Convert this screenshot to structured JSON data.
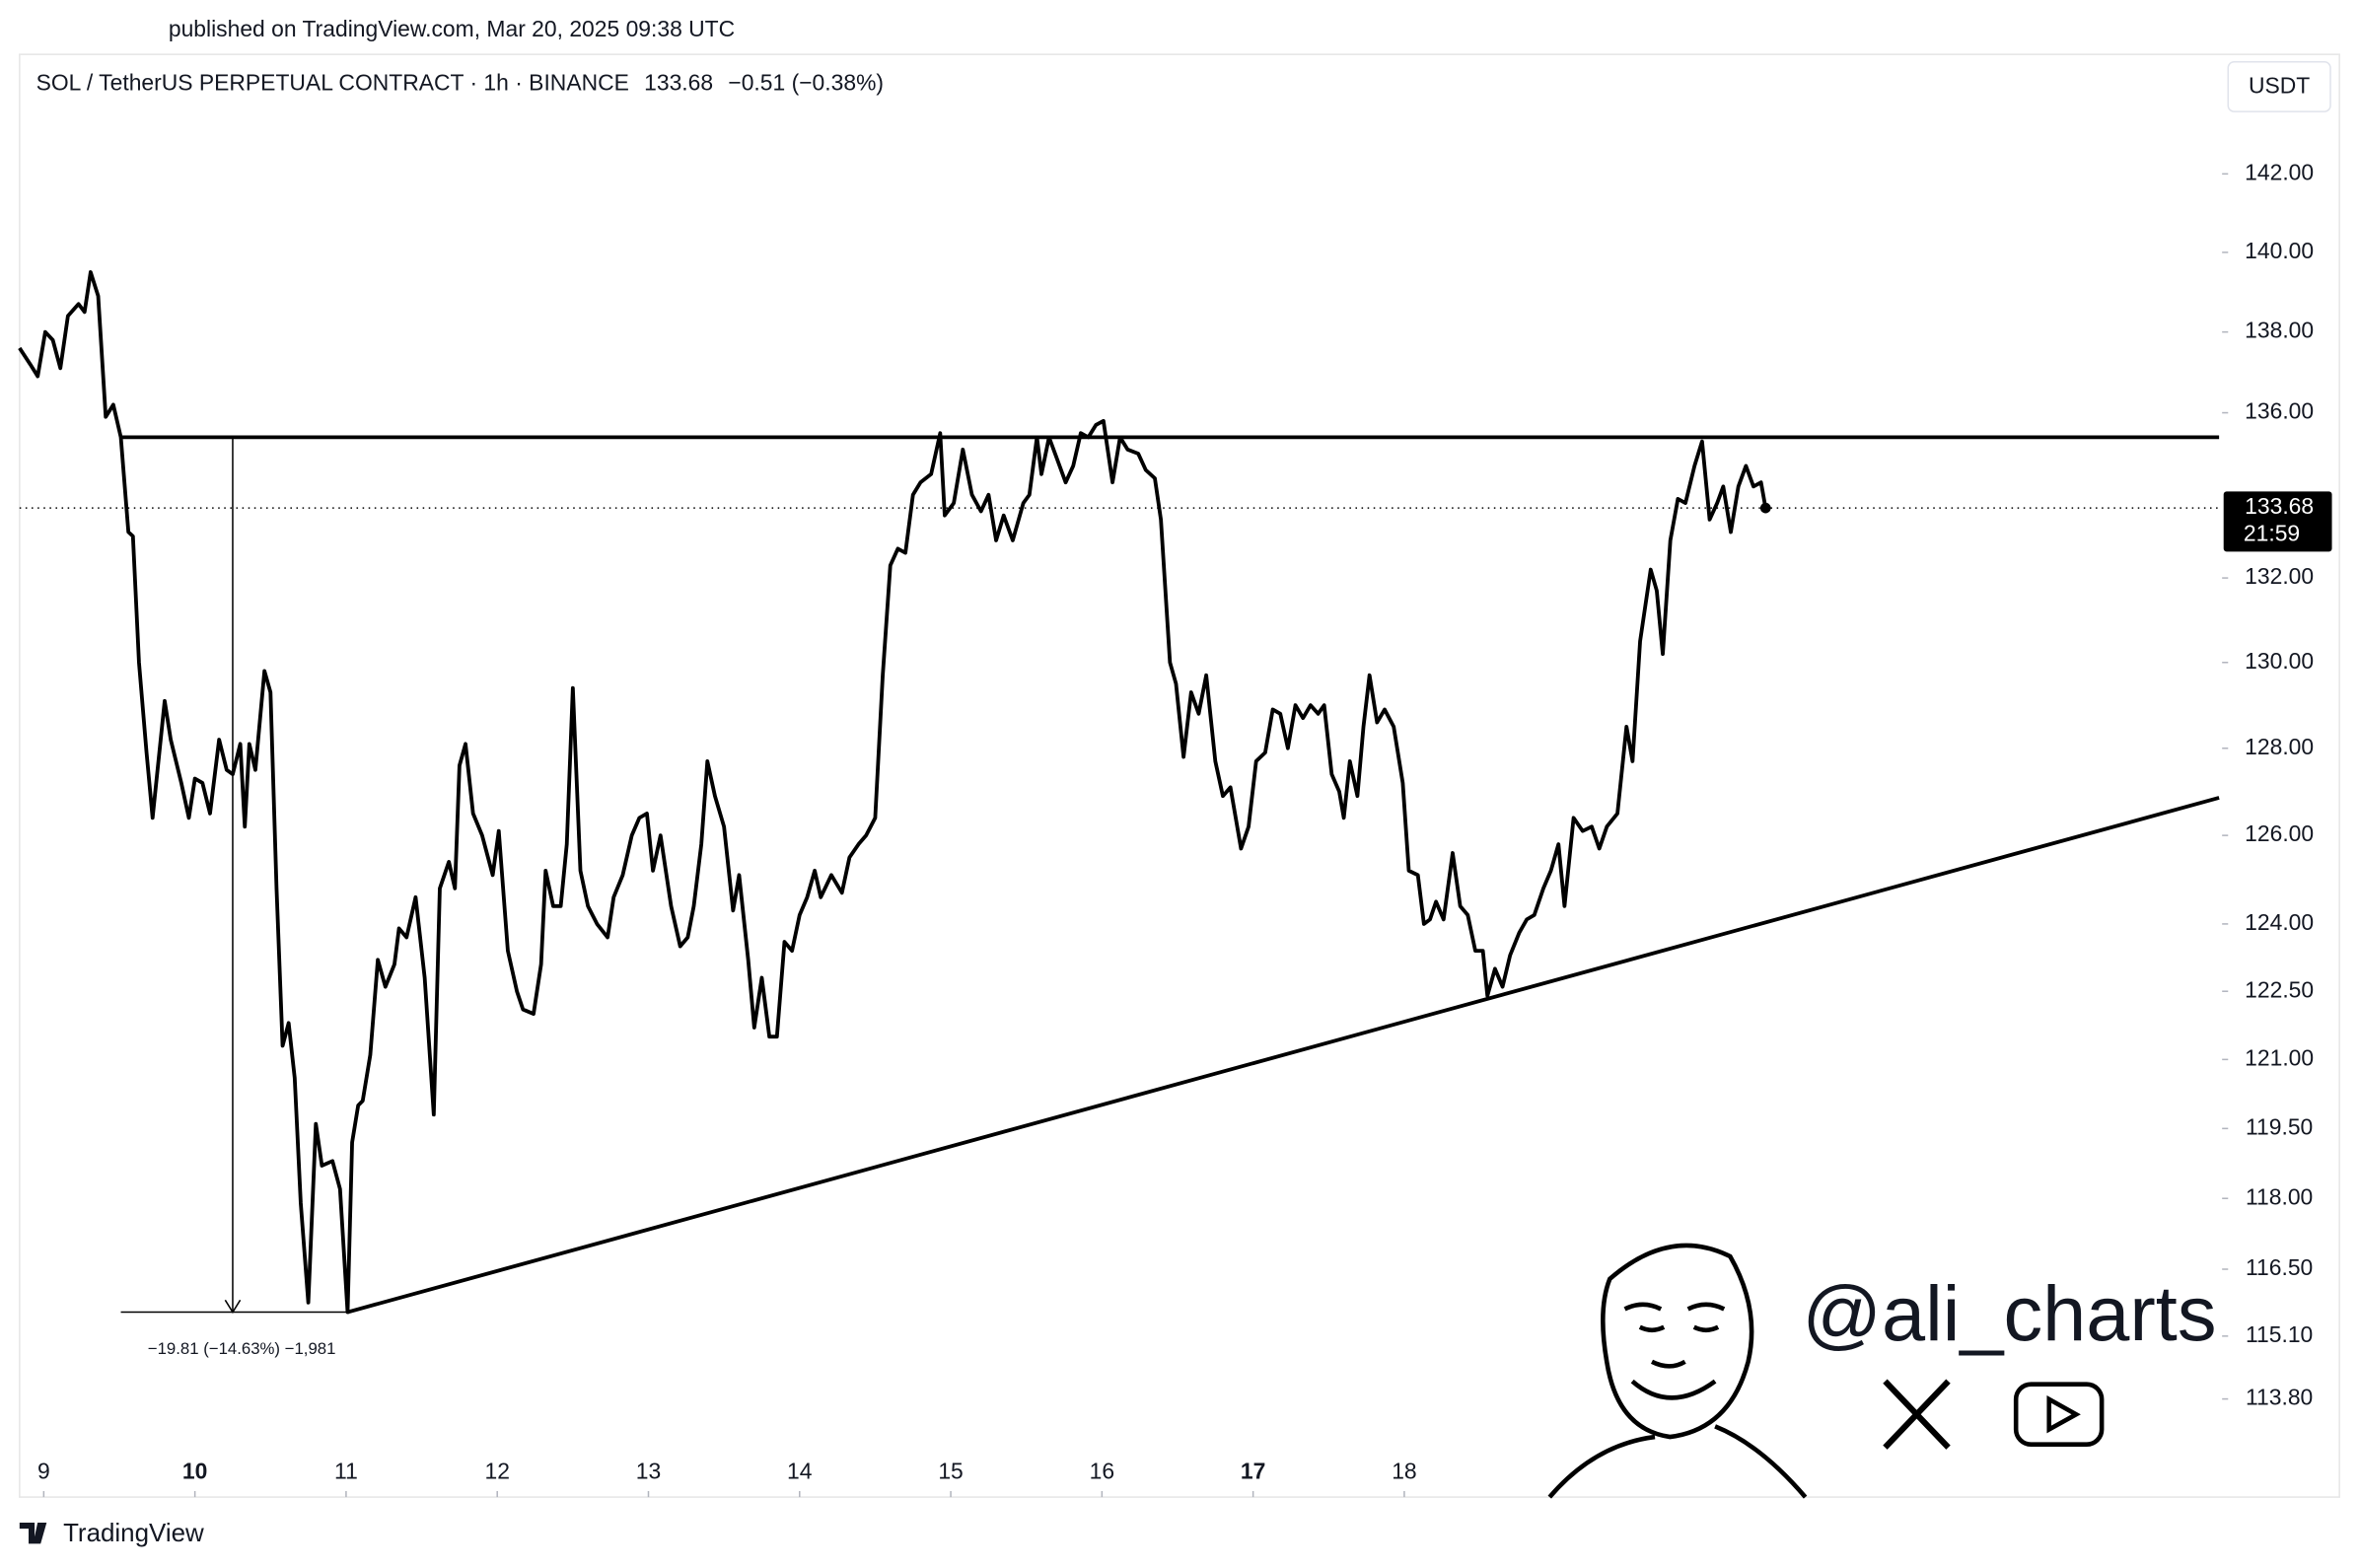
{
  "header": {
    "published": "published on TradingView.com, Mar 20, 2025 09:38 UTC",
    "footer_brand": "TradingView",
    "watermark": "@ali_charts"
  },
  "chart_data": {
    "type": "line",
    "title": "SOL / TetherUS PERPETUAL CONTRACT · 1h · BINANCE",
    "header_price": 133.68,
    "price_change": "−0.51 (−0.38%)",
    "currency": "USDT",
    "last_price": 133.68,
    "countdown": "21:59",
    "color": "#000000",
    "log_scale": true,
    "x": [
      8.84,
      8.91,
      8.96,
      9.01,
      9.06,
      9.11,
      9.16,
      9.23,
      9.27,
      9.31,
      9.36,
      9.41,
      9.46,
      9.51,
      9.56,
      9.59,
      9.63,
      9.68,
      9.72,
      9.8,
      9.84,
      9.91,
      9.96,
      10.0,
      10.05,
      10.1,
      10.16,
      10.21,
      10.25,
      10.3,
      10.33,
      10.36,
      10.4,
      10.46,
      10.5,
      10.54,
      10.58,
      10.62,
      10.66,
      10.7,
      10.75,
      10.8,
      10.84,
      10.91,
      10.96,
      11.01,
      11.04,
      11.08,
      11.11,
      11.16,
      11.21,
      11.26,
      11.32,
      11.35,
      11.4,
      11.46,
      11.52,
      11.58,
      11.62,
      11.68,
      11.72,
      11.75,
      11.79,
      11.84,
      11.9,
      11.97,
      12.01,
      12.07,
      12.13,
      12.17,
      12.24,
      12.29,
      12.32,
      12.37,
      12.42,
      12.46,
      12.5,
      12.55,
      12.6,
      12.66,
      12.73,
      12.77,
      12.83,
      12.89,
      12.94,
      12.99,
      13.03,
      13.08,
      13.15,
      13.21,
      13.26,
      13.3,
      13.35,
      13.39,
      13.44,
      13.5,
      13.56,
      13.6,
      13.66,
      13.7,
      13.75,
      13.8,
      13.85,
      13.9,
      13.95,
      14.0,
      14.05,
      14.1,
      14.14,
      14.21,
      14.28,
      14.33,
      14.39,
      14.44,
      14.5,
      14.55,
      14.6,
      14.65,
      14.7,
      14.75,
      14.8,
      14.87,
      14.93,
      14.96,
      15.02,
      15.08,
      15.14,
      15.2,
      15.25,
      15.3,
      15.35,
      15.41,
      15.48,
      15.52,
      15.57,
      15.6,
      15.65,
      15.7,
      15.76,
      15.81,
      15.86,
      15.91,
      15.96,
      16.01,
      16.07,
      16.12,
      16.17,
      16.24,
      16.29,
      16.35,
      16.39,
      16.45,
      16.49,
      16.54,
      16.59,
      16.64,
      16.69,
      16.75,
      16.8,
      16.85,
      16.92,
      16.97,
      17.02,
      17.08,
      17.13,
      17.18,
      17.23,
      17.28,
      17.33,
      17.38,
      17.43,
      17.47,
      17.52,
      17.57,
      17.6,
      17.64,
      17.69,
      17.73,
      17.77,
      17.82,
      17.87,
      17.93,
      17.99,
      18.03,
      18.09,
      18.13,
      18.17,
      18.21,
      18.26,
      18.32,
      18.37,
      18.42,
      18.47,
      18.52,
      18.55,
      18.6,
      18.65,
      18.7,
      18.76,
      18.81,
      18.86,
      18.92,
      18.97,
      19.02,
      19.06,
      19.12,
      19.18,
      19.24,
      19.29,
      19.34,
      19.41,
      19.47,
      19.51,
      19.56,
      19.63,
      19.67,
      19.71,
      19.76,
      19.81,
      19.86,
      19.92,
      19.97,
      20.02,
      20.07,
      20.11,
      20.16,
      20.21,
      20.26,
      20.31,
      20.36,
      20.39
    ],
    "values": [
      137.6,
      137.2,
      136.9,
      138.0,
      137.8,
      137.1,
      138.4,
      138.7,
      138.5,
      139.5,
      138.9,
      135.9,
      136.2,
      135.4,
      133.1,
      133.0,
      130.0,
      127.9,
      126.4,
      129.1,
      128.2,
      127.2,
      126.4,
      127.3,
      127.2,
      126.5,
      128.2,
      127.5,
      127.4,
      128.1,
      126.2,
      128.1,
      127.5,
      129.8,
      129.3,
      124.8,
      121.3,
      121.8,
      120.6,
      117.9,
      115.8,
      119.6,
      118.7,
      118.8,
      118.2,
      115.6,
      119.2,
      120.0,
      120.1,
      121.1,
      123.2,
      122.6,
      123.1,
      123.9,
      123.7,
      124.6,
      122.8,
      119.8,
      124.8,
      125.4,
      124.8,
      127.6,
      128.1,
      126.5,
      126.0,
      125.1,
      126.1,
      123.4,
      122.5,
      122.1,
      122.0,
      123.1,
      125.2,
      124.4,
      124.4,
      125.8,
      129.4,
      125.2,
      124.4,
      124.0,
      123.7,
      124.6,
      125.1,
      126.0,
      126.4,
      126.5,
      125.2,
      126.0,
      124.4,
      123.5,
      123.7,
      124.4,
      125.8,
      127.7,
      126.9,
      126.2,
      124.3,
      125.1,
      123.2,
      121.7,
      122.8,
      121.5,
      121.5,
      123.6,
      123.4,
      124.2,
      124.6,
      125.2,
      124.6,
      125.1,
      124.7,
      125.5,
      125.8,
      126.0,
      126.4,
      129.7,
      132.3,
      132.7,
      132.6,
      134.0,
      134.3,
      134.5,
      135.5,
      133.5,
      133.8,
      135.1,
      134.0,
      133.6,
      134.0,
      132.9,
      133.5,
      132.9,
      133.8,
      134.0,
      135.4,
      134.5,
      135.4,
      134.9,
      134.3,
      134.7,
      135.5,
      135.4,
      135.7,
      135.8,
      134.3,
      135.4,
      135.1,
      135.0,
      134.6,
      134.4,
      133.4,
      130.0,
      129.5,
      127.8,
      129.3,
      128.8,
      129.7,
      127.7,
      126.9,
      127.1,
      125.7,
      126.2,
      127.7,
      127.9,
      128.9,
      128.8,
      128.0,
      129.0,
      128.7,
      129.0,
      128.8,
      129.0,
      127.4,
      127.0,
      126.4,
      127.7,
      126.9,
      128.5,
      129.7,
      128.6,
      128.9,
      128.5,
      127.2,
      125.2,
      125.1,
      124.0,
      124.1,
      124.5,
      124.1,
      125.6,
      124.4,
      124.2,
      123.4,
      123.4,
      122.4,
      123.0,
      122.6,
      123.3,
      123.8,
      124.1,
      124.2,
      124.8,
      125.2,
      125.8,
      124.4,
      126.4,
      126.1,
      126.2,
      125.7,
      126.2,
      126.5,
      128.5,
      127.7,
      130.5,
      132.2,
      131.7,
      130.2,
      132.9,
      133.9,
      133.8,
      134.7,
      135.3,
      133.4,
      133.8,
      134.2,
      133.1,
      134.2,
      134.7,
      134.2,
      134.3,
      133.68
    ],
    "xlim": [
      8.84,
      23.39
    ],
    "xticks": [
      9,
      10,
      11,
      12,
      13,
      14,
      15,
      16,
      17,
      18
    ],
    "ylim": [
      111.8,
      145.1
    ],
    "yticks": [
      {
        "value": 142,
        "label": "142.00"
      },
      {
        "value": 140,
        "label": "140.00"
      },
      {
        "value": 138,
        "label": "138.00"
      },
      {
        "value": 136,
        "label": "136.00"
      },
      {
        "value": 132,
        "label": "132.00"
      },
      {
        "value": 130,
        "label": "130.00"
      },
      {
        "value": 128,
        "label": "128.00"
      },
      {
        "value": 126,
        "label": "126.00"
      },
      {
        "value": 124,
        "label": "124.00"
      },
      {
        "value": 122.5,
        "label": "122.50"
      },
      {
        "value": 121,
        "label": "121.00"
      },
      {
        "value": 119.5,
        "label": "119.50"
      },
      {
        "value": 118,
        "label": "118.00"
      },
      {
        "value": 116.5,
        "label": "116.50"
      },
      {
        "value": 115.1,
        "label": "115.10"
      },
      {
        "value": 113.8,
        "label": "113.80"
      }
    ],
    "resistance": {
      "x": [
        9.51,
        23.39
      ],
      "y": [
        135.4,
        135.4
      ]
    },
    "support": {
      "x": [
        11.01,
        23.39
      ],
      "y": [
        115.6,
        126.86
      ]
    },
    "measure": {
      "x": [
        10.25,
        10.25
      ],
      "y": [
        135.4,
        115.6
      ],
      "base_x": [
        9.51,
        11.01
      ],
      "label": "−19.81 (−14.63%) −1,981"
    }
  }
}
